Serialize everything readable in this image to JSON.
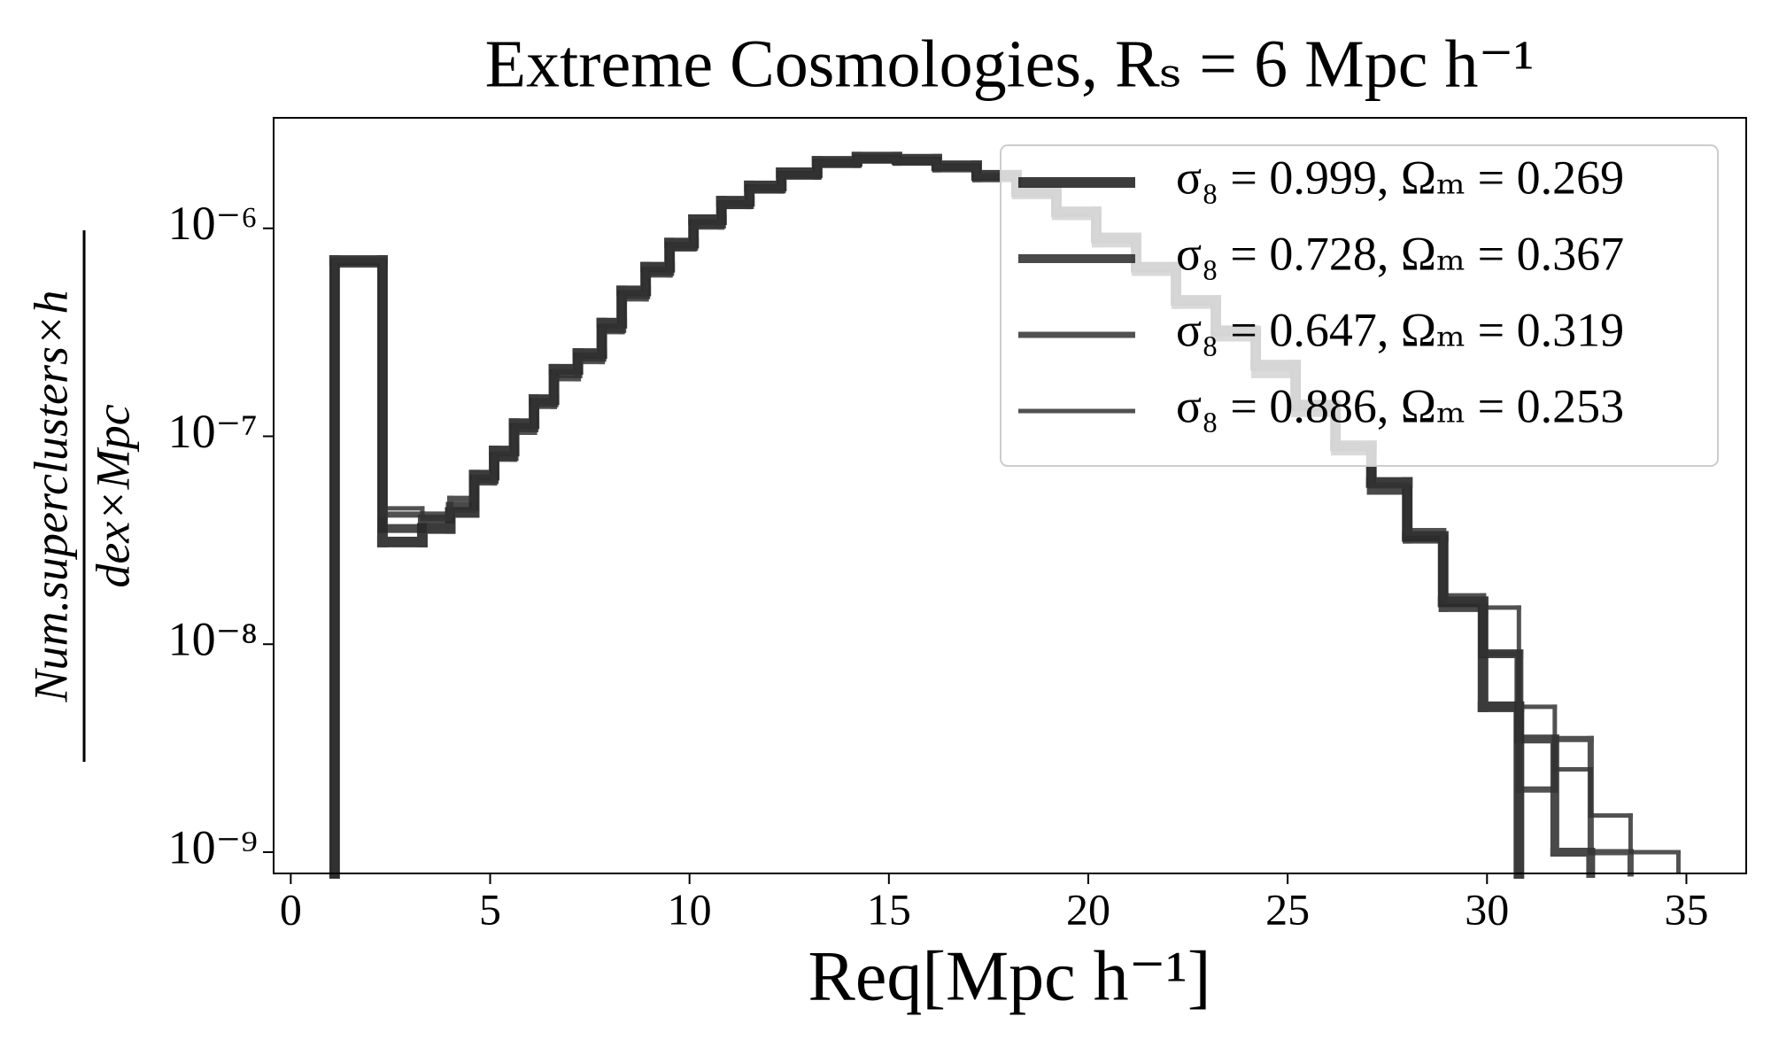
{
  "chart_data": {
    "type": "histogram",
    "title": "Extreme Cosmologies, Rₛ = 6 Mpc h⁻¹",
    "xlabel": "Req[Mpc h⁻¹]",
    "ylabel_numerator": "Num.superclusters×h",
    "ylabel_denominator": "dex×Mpc",
    "yscale": "log",
    "xlim": [
      -0.43,
      36.5
    ],
    "ylim": [
      7.9e-10,
      3.4e-06
    ],
    "xticks": [
      0,
      5,
      10,
      15,
      20,
      25,
      30,
      35
    ],
    "yticks": [
      {
        "value": 1e-09,
        "label": "10⁻⁹"
      },
      {
        "value": 1e-08,
        "label": "10⁻⁸"
      },
      {
        "value": 1e-07,
        "label": "10⁻⁷"
      },
      {
        "value": 1e-06,
        "label": "10⁻⁶"
      }
    ],
    "legend": "upper right",
    "bins": [
      1.1,
      2.3,
      3.3,
      4.0,
      4.6,
      5.1,
      5.6,
      6.1,
      6.6,
      7.2,
      7.8,
      8.3,
      8.9,
      9.5,
      10.1,
      10.8,
      11.5,
      12.3,
      13.2,
      14.2,
      15.2,
      16.2,
      17.2,
      18.2,
      19.2,
      20.2,
      21.2,
      22.2,
      23.2,
      24.2,
      25.2,
      26.2,
      27.1,
      28.0,
      28.9,
      29.9,
      30.8,
      31.7,
      32.6,
      33.6,
      34.8
    ],
    "series": [
      {
        "name": "σ₈ = 0.999, Ωₘ = 0.269",
        "color": "#1a1a1a",
        "values": [
          7e-07,
          3.1e-08,
          3.6e-08,
          4.3e-08,
          6.5e-08,
          8.5e-08,
          1.15e-07,
          1.5e-07,
          2.1e-07,
          2.5e-07,
          3.5e-07,
          5e-07,
          6.5e-07,
          8.5e-07,
          1.1e-06,
          1.35e-06,
          1.6e-06,
          1.85e-06,
          2.1e-06,
          2.2e-06,
          2.15e-06,
          2e-06,
          1.8e-06,
          1.5e-06,
          1.2e-06,
          9e-07,
          6.5e-07,
          4.5e-07,
          3.2e-07,
          2.2e-07,
          1.4e-07,
          9e-08,
          6e-08,
          3.3e-08,
          1.6e-08,
          5e-09,
          null,
          null,
          null,
          null
        ]
      },
      {
        "name": "σ₈ = 0.728, Ωₘ = 0.367",
        "color": "#2a2a2a",
        "values": [
          6.8e-07,
          3.6e-08,
          4e-08,
          4.6e-08,
          6.2e-08,
          8e-08,
          1.1e-07,
          1.45e-07,
          2e-07,
          2.4e-07,
          3.3e-07,
          4.8e-07,
          6.2e-07,
          8.2e-07,
          1.05e-06,
          1.3e-06,
          1.55e-06,
          1.8e-06,
          2.05e-06,
          2.15e-06,
          2.1e-06,
          1.95e-06,
          1.75e-06,
          1.45e-06,
          1.15e-06,
          8.5e-07,
          6.2e-07,
          4.3e-07,
          3e-07,
          2e-07,
          1.3e-07,
          8.5e-08,
          5.5e-08,
          3.2e-08,
          1.5e-08,
          9e-09,
          3.5e-09,
          1e-09,
          null,
          null
        ]
      },
      {
        "name": "σ₈ = 0.647, Ωₘ = 0.319",
        "color": "#333333",
        "values": [
          7e-07,
          4.2e-08,
          4.2e-08,
          5e-08,
          6e-08,
          7.8e-08,
          1.05e-07,
          1.4e-07,
          1.9e-07,
          2.3e-07,
          3.2e-07,
          4.6e-07,
          6e-07,
          8e-07,
          1.02e-06,
          1.28e-06,
          1.52e-06,
          1.78e-06,
          2.02e-06,
          2.12e-06,
          2.08e-06,
          1.95e-06,
          1.78e-06,
          1.5e-06,
          1.2e-06,
          9e-07,
          6.6e-07,
          4.6e-07,
          3.3e-07,
          2.2e-07,
          1.45e-07,
          9e-08,
          5.8e-08,
          3.5e-08,
          1.7e-08,
          9e-09,
          2e-09,
          3.5e-09,
          1e-09,
          null
        ]
      },
      {
        "name": "σ₈ = 0.886, Ωₘ = 0.253",
        "color": "#333333",
        "values": [
          7e-07,
          4.5e-08,
          4e-08,
          4.4e-08,
          6.4e-08,
          8.3e-08,
          1.12e-07,
          1.48e-07,
          2.05e-07,
          2.45e-07,
          3.4e-07,
          4.9e-07,
          6.4e-07,
          8.4e-07,
          1.08e-06,
          1.33e-06,
          1.58e-06,
          1.83e-06,
          2.08e-06,
          2.18e-06,
          2.12e-06,
          1.98e-06,
          1.78e-06,
          1.48e-06,
          1.18e-06,
          8.8e-07,
          6.4e-07,
          4.4e-07,
          3.1e-07,
          2.1e-07,
          1.35e-07,
          8.8e-08,
          5.8e-08,
          3.4e-08,
          1.6e-08,
          1.5e-08,
          5e-09,
          2.5e-09,
          1.5e-09,
          1e-09
        ]
      }
    ]
  }
}
